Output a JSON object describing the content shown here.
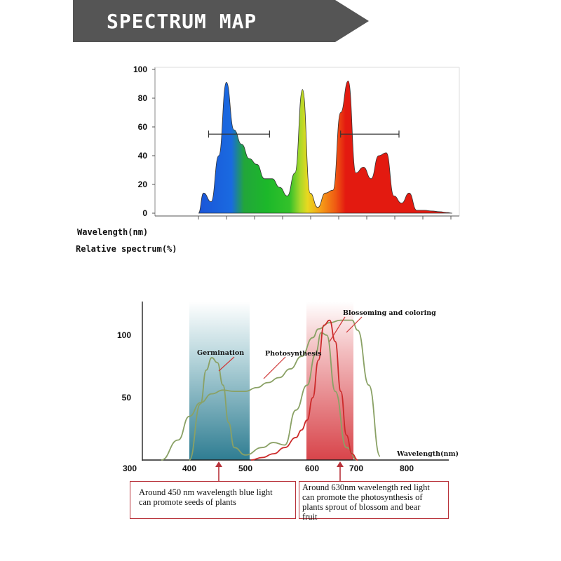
{
  "header": {
    "title": "SPECTRUM MAP",
    "background": "#555555"
  },
  "chart_data": [
    {
      "type": "area",
      "xlabel": "Wavelength(nm)",
      "ylabel": "Relative spectrum(%)",
      "ylim": [
        0,
        100
      ],
      "y_ticks": [
        "0",
        "20",
        "40",
        "60",
        "80",
        "100"
      ],
      "grid": false,
      "series": [
        {
          "x": [
            0,
            2,
            5,
            8,
            11,
            14,
            17,
            20,
            23,
            26,
            29,
            32,
            35,
            38,
            41,
            44,
            47,
            50,
            53,
            56,
            59,
            62,
            65,
            68,
            71,
            74,
            77,
            80,
            83,
            86,
            89,
            92,
            95,
            98,
            100
          ],
          "values": [
            0,
            14,
            8,
            40,
            91,
            58,
            48,
            38,
            34,
            24,
            24,
            18,
            12,
            28,
            86,
            14,
            4,
            14,
            16,
            70,
            92,
            28,
            32,
            24,
            40,
            42,
            12,
            7,
            14,
            2,
            2,
            1.5,
            1,
            0.5,
            0
          ]
        }
      ],
      "annotations": [
        {
          "type": "range-bar",
          "y": 55,
          "x_from": 4,
          "x_to": 28
        },
        {
          "type": "range-bar",
          "y": 55,
          "x_from": 56,
          "x_to": 79
        }
      ],
      "colors": [
        "#1e5bd6",
        "#1db82b",
        "#d8d820",
        "#f08a10",
        "#e31a10"
      ]
    },
    {
      "type": "line",
      "xlabel": "Wavelength(nm)",
      "x_ticks": [
        "300",
        "400",
        "500",
        "600",
        "700",
        "800"
      ],
      "y_ticks": [
        "50",
        "100"
      ],
      "ylim": [
        0,
        115
      ],
      "grid": false,
      "series": [
        {
          "color": "#8aa165",
          "x": [
            350,
            380,
            400,
            420,
            440,
            460,
            480,
            500,
            520,
            540,
            560,
            580,
            600,
            620,
            630,
            650,
            670,
            690,
            700,
            720,
            740
          ],
          "y": [
            0,
            16,
            35,
            46,
            53,
            56,
            55,
            55,
            58,
            62,
            66,
            73,
            83,
            98,
            105,
            110,
            112,
            112,
            104,
            60,
            3
          ]
        },
        {
          "color": "#8aa165",
          "x": [
            400,
            420,
            430,
            440,
            450,
            460,
            470,
            480,
            500,
            530,
            550,
            570,
            590,
            610,
            625,
            635,
            645,
            660,
            680,
            700
          ],
          "y": [
            0,
            45,
            72,
            82,
            78,
            60,
            30,
            10,
            4,
            10,
            14,
            12,
            40,
            60,
            85,
            102,
            100,
            55,
            10,
            0
          ]
        },
        {
          "color": "#cc2a2a",
          "x": [
            510,
            530,
            550,
            570,
            590,
            600,
            610,
            620,
            630,
            640,
            650,
            660,
            670,
            680,
            690,
            700
          ],
          "y": [
            0,
            2,
            5,
            10,
            18,
            24,
            32,
            50,
            80,
            108,
            112,
            95,
            55,
            20,
            5,
            0
          ]
        }
      ],
      "bands": [
        {
          "from": 400,
          "to": 500,
          "color": "#4a8fa3"
        },
        {
          "from": 605,
          "to": 710,
          "color": "#dc5a5e"
        }
      ],
      "annotations": [
        "Germination",
        "Photosynthesis",
        "Blossoming and coloring"
      ]
    }
  ],
  "chart1_labels": {
    "xlabel": "Wavelength(nm)",
    "ylabel": "Relative spectrum(%)"
  },
  "chart2_labels": {
    "xlabel": "Wavelength(nm)",
    "germination": "Germination",
    "photosynthesis": "Photosynthesis",
    "blossoming": "Blossoming and coloring"
  },
  "notes": {
    "blue": [
      "Around 450 nm wavelength blue light",
      "can promote seeds of plants"
    ],
    "red": [
      "Around 630nm wavelength red light",
      "can promote the photosynthesis of",
      "plants sprout of blossom and bear",
      "fruit"
    ],
    "border_color": "#b8323a"
  }
}
